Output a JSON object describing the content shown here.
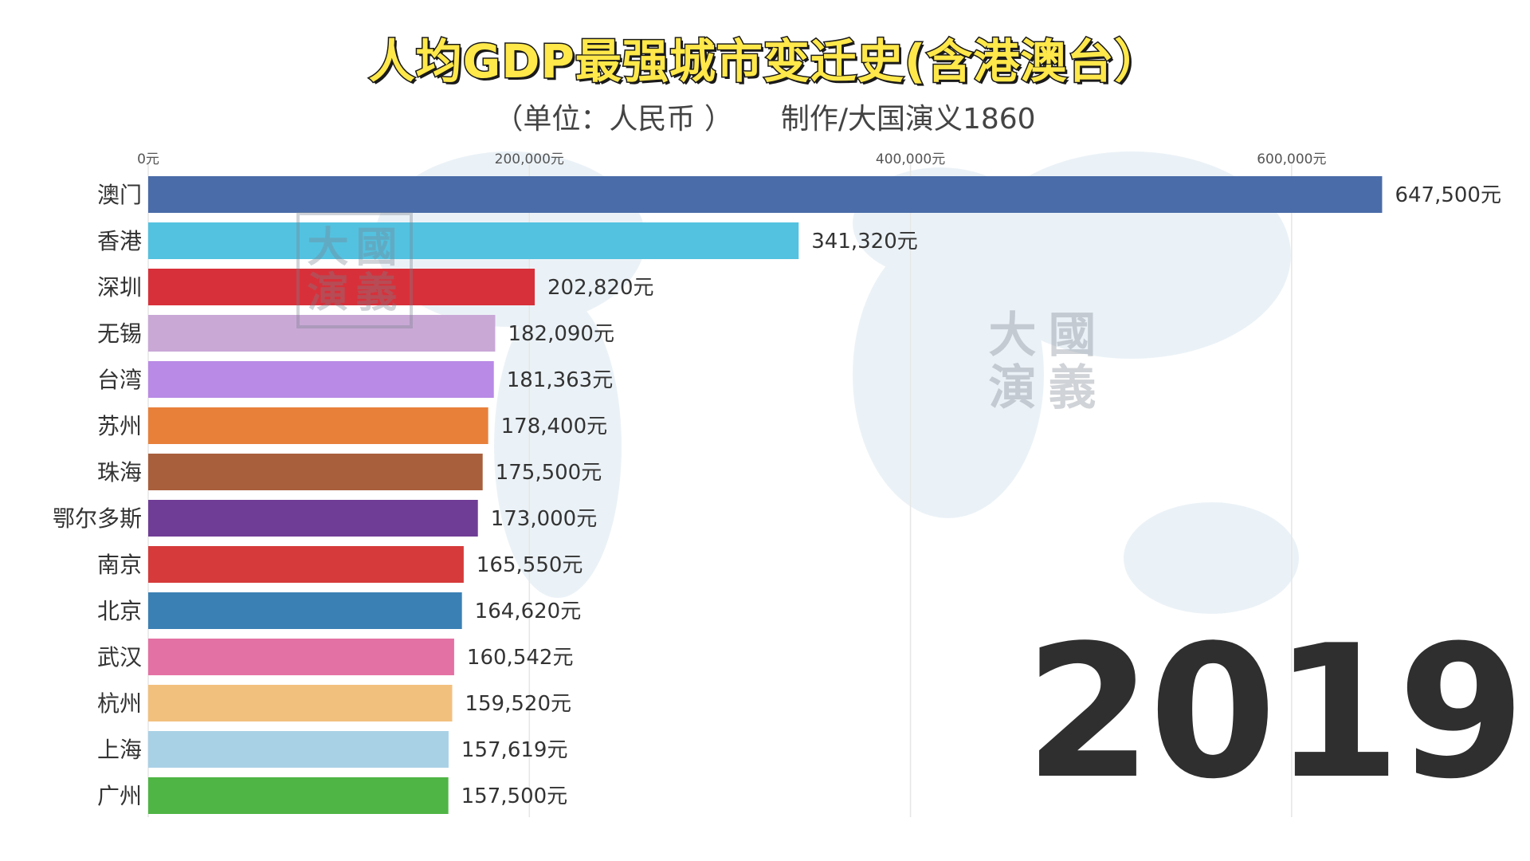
{
  "title": "人均GDP最强城市变迁史(含港澳台）",
  "subtitle_unit": "（单位：人民币 ）",
  "subtitle_credit": "制作/大国演义1860",
  "year": "2019",
  "watermark_chars": [
    "大",
    "國",
    "演",
    "義"
  ],
  "colors": {
    "title_fill": "#ffe84a",
    "title_stroke": "#1a1a1a",
    "gridline": "#e6e6e6",
    "map_tint": "#d6e6f0"
  },
  "chart_data": {
    "type": "bar",
    "orientation": "horizontal",
    "title": "人均GDP最强城市变迁史(含港澳台）",
    "unit_suffix": "元",
    "xlim": [
      0,
      700000
    ],
    "x_ticks": [
      0,
      200000,
      400000,
      600000
    ],
    "x_tick_labels": [
      "0元",
      "200,000元",
      "400,000元",
      "600,000元"
    ],
    "grid": true,
    "tick_position": "top",
    "categories": [
      "澳门",
      "香港",
      "深圳",
      "无锡",
      "台湾",
      "苏州",
      "珠海",
      "鄂尔多斯",
      "南京",
      "北京",
      "武汉",
      "杭州",
      "上海",
      "广州"
    ],
    "values": [
      647500,
      341320,
      202820,
      182090,
      181363,
      178400,
      175500,
      173000,
      165550,
      164620,
      160542,
      159520,
      157619,
      157500
    ],
    "value_labels": [
      "647,500元",
      "341,320元",
      "202,820元",
      "182,090元",
      "181,363元",
      "178,400元",
      "175,500元",
      "173,000元",
      "165,550元",
      "164,620元",
      "160,542元",
      "159,520元",
      "157,619元",
      "157,500元"
    ],
    "bar_colors": [
      "#4a6ca8",
      "#53c2e0",
      "#d8303a",
      "#c9a8d6",
      "#b98ae6",
      "#e8803a",
      "#a85f3c",
      "#6f3d96",
      "#d63a3a",
      "#3a80b4",
      "#e471a3",
      "#f2c07d",
      "#a9d1e6",
      "#4fb545"
    ]
  }
}
